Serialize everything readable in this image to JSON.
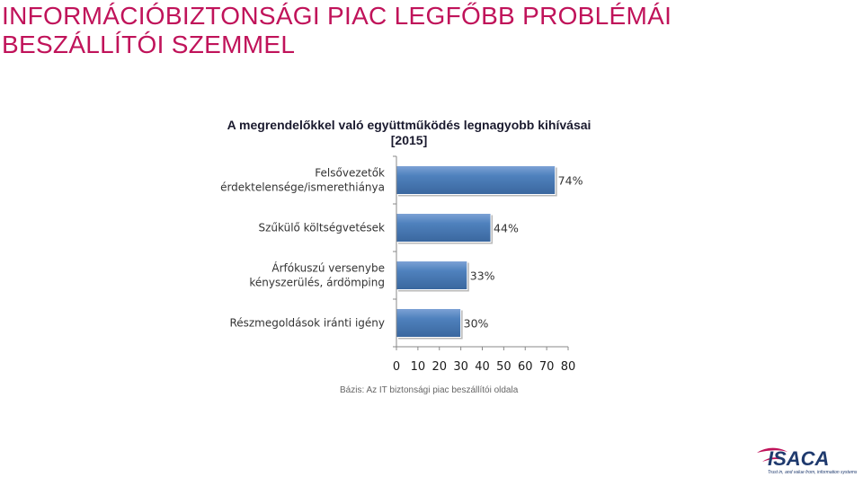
{
  "page_title_line1": "INFORMÁCIÓBIZTONSÁGI PIAC LEGFŐBB PROBLÉMÁI",
  "page_title_line2": "BESZÁLLÍTÓI SZEMMEL",
  "footnote": "Bázis: Az IT biztonsági piac beszállítói oldala",
  "logo": {
    "brand": "ISACA",
    "tagline": "Trust in, and value from, information systems"
  },
  "colors": {
    "title": "#c0135a",
    "bar": "#4a7ebb",
    "bar_top": "#7ea3d6",
    "axis": "#888888"
  },
  "chart_data": {
    "type": "bar",
    "orientation": "horizontal",
    "title_line1": "A megrendelőkkel való együttműködés legnagyobb kihívásai",
    "title_line2": "[2015]",
    "categories": [
      [
        "Felsővezetők",
        "érdektelensége/ismerethiánya"
      ],
      [
        "Szűkülő költségvetések"
      ],
      [
        "Árfókuszú versenybe",
        "kényszerülés, árdömping"
      ],
      [
        "Részmegoldások iránti igény"
      ]
    ],
    "values": [
      74,
      44,
      33,
      30
    ],
    "value_labels": [
      "74%",
      "44%",
      "33%",
      "30%"
    ],
    "xlim": [
      0,
      80
    ],
    "x_ticks": [
      "0",
      "10",
      "20",
      "30",
      "40",
      "50",
      "60",
      "70",
      "80"
    ],
    "grid": false,
    "legend": false
  }
}
